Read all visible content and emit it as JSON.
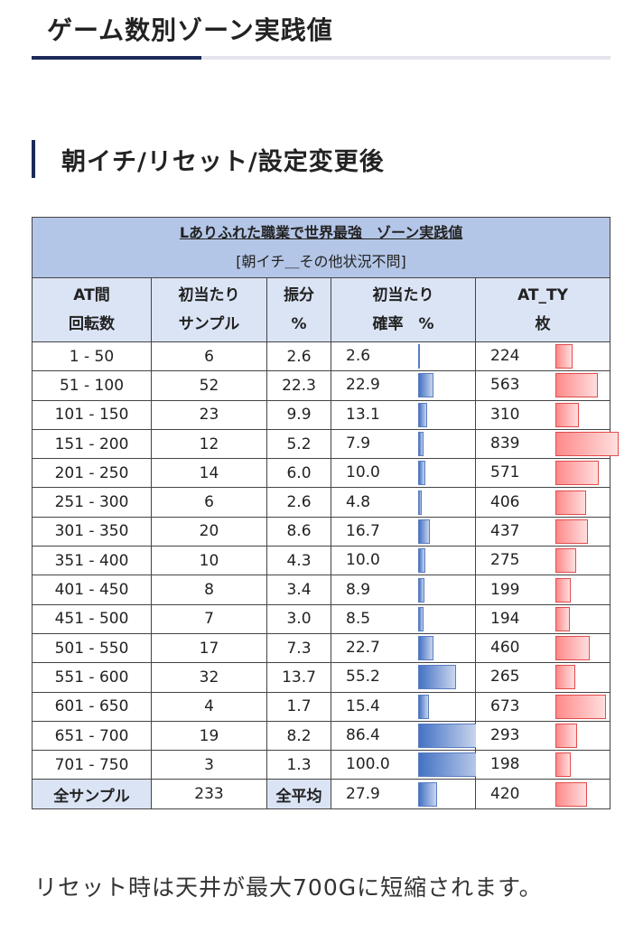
{
  "section_title": "ゲーム数別ゾーン実践値",
  "sub_title": "朝イチ/リセット/設定変更後",
  "table": {
    "title": "Lありふれた職業で世界最強　ゾーン実践値",
    "subtitle": "[朝イチ＿その他状況不問]",
    "headers": [
      {
        "line1": "AT間",
        "line2": "回転数"
      },
      {
        "line1": "初当たり",
        "line2": "サンプル"
      },
      {
        "line1": "振分",
        "line2": "%"
      },
      {
        "line1": "初当たり",
        "line2": "確率　%"
      },
      {
        "line1": "AT_TY",
        "line2": "枚"
      }
    ],
    "rows": [
      {
        "range": "1 - 50",
        "samples": "6",
        "dist": "2.6",
        "rate": "2.6",
        "rate_val": 2.6,
        "ty": "224",
        "ty_val": 224
      },
      {
        "range": "51 - 100",
        "samples": "52",
        "dist": "22.3",
        "rate": "22.9",
        "rate_val": 22.9,
        "ty": "563",
        "ty_val": 563
      },
      {
        "range": "101 - 150",
        "samples": "23",
        "dist": "9.9",
        "rate": "13.1",
        "rate_val": 13.1,
        "ty": "310",
        "ty_val": 310
      },
      {
        "range": "151 - 200",
        "samples": "12",
        "dist": "5.2",
        "rate": "7.9",
        "rate_val": 7.9,
        "ty": "839",
        "ty_val": 839
      },
      {
        "range": "201 - 250",
        "samples": "14",
        "dist": "6.0",
        "rate": "10.0",
        "rate_val": 10.0,
        "ty": "571",
        "ty_val": 571
      },
      {
        "range": "251 - 300",
        "samples": "6",
        "dist": "2.6",
        "rate": "4.8",
        "rate_val": 4.8,
        "ty": "406",
        "ty_val": 406
      },
      {
        "range": "301 - 350",
        "samples": "20",
        "dist": "8.6",
        "rate": "16.7",
        "rate_val": 16.7,
        "ty": "437",
        "ty_val": 437
      },
      {
        "range": "351 - 400",
        "samples": "10",
        "dist": "4.3",
        "rate": "10.0",
        "rate_val": 10.0,
        "ty": "275",
        "ty_val": 275
      },
      {
        "range": "401 - 450",
        "samples": "8",
        "dist": "3.4",
        "rate": "8.9",
        "rate_val": 8.9,
        "ty": "199",
        "ty_val": 199
      },
      {
        "range": "451 - 500",
        "samples": "7",
        "dist": "3.0",
        "rate": "8.5",
        "rate_val": 8.5,
        "ty": "194",
        "ty_val": 194
      },
      {
        "range": "501 - 550",
        "samples": "17",
        "dist": "7.3",
        "rate": "22.7",
        "rate_val": 22.7,
        "ty": "460",
        "ty_val": 460
      },
      {
        "range": "551 - 600",
        "samples": "32",
        "dist": "13.7",
        "rate": "55.2",
        "rate_val": 55.2,
        "ty": "265",
        "ty_val": 265
      },
      {
        "range": "601 - 650",
        "samples": "4",
        "dist": "1.7",
        "rate": "15.4",
        "rate_val": 15.4,
        "ty": "673",
        "ty_val": 673
      },
      {
        "range": "651 - 700",
        "samples": "19",
        "dist": "8.2",
        "rate": "86.4",
        "rate_val": 86.4,
        "ty": "293",
        "ty_val": 293
      },
      {
        "range": "701 - 750",
        "samples": "3",
        "dist": "1.3",
        "rate": "100.0",
        "rate_val": 100.0,
        "ty": "198",
        "ty_val": 198
      }
    ],
    "total": {
      "label": "全サンプル",
      "samples": "233",
      "avg_label": "全平均",
      "rate": "27.9",
      "rate_val": 27.9,
      "ty": "420",
      "ty_val": 420
    },
    "rate_max": 100,
    "ty_max": 839,
    "colors": {
      "title_bg": "#b4c6e7",
      "header_bg": "#dbe4f5",
      "blue_bar": "#4472c4",
      "red_bar": "#ff8a8a"
    }
  },
  "note": "リセット時は天井が最大700Gに短縮されます。"
}
